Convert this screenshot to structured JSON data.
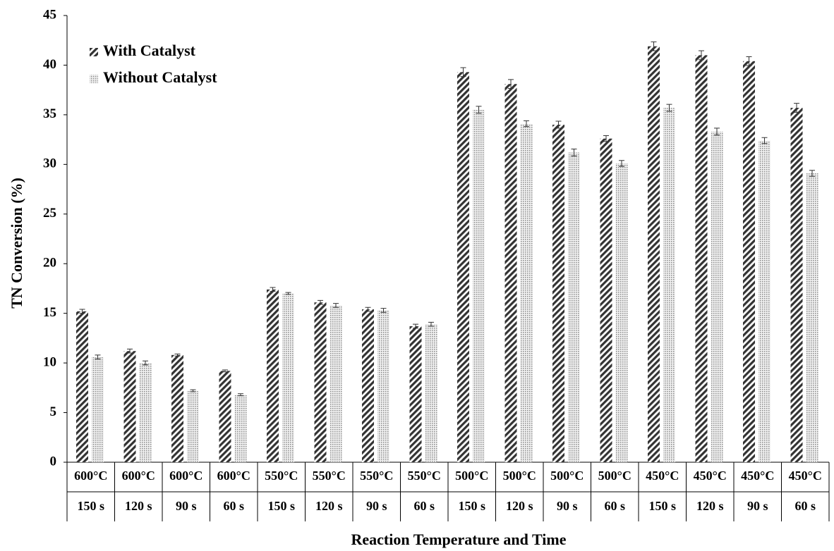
{
  "chart_data": {
    "type": "bar",
    "x_label": "Reaction Temperature and Time",
    "y_label": "TN Conversion (%)",
    "categories": [
      {
        "temperature": "600°C",
        "time": "150 s"
      },
      {
        "temperature": "600°C",
        "time": "120 s"
      },
      {
        "temperature": "600°C",
        "time": "90 s"
      },
      {
        "temperature": "600°C",
        "time": "60 s"
      },
      {
        "temperature": "550°C",
        "time": "150 s"
      },
      {
        "temperature": "550°C",
        "time": "120 s"
      },
      {
        "temperature": "550°C",
        "time": "90 s"
      },
      {
        "temperature": "550°C",
        "time": "60 s"
      },
      {
        "temperature": "500°C",
        "time": "150 s"
      },
      {
        "temperature": "500°C",
        "time": "120 s"
      },
      {
        "temperature": "500°C",
        "time": "90 s"
      },
      {
        "temperature": "500°C",
        "time": "60 s"
      },
      {
        "temperature": "450°C",
        "time": "150 s"
      },
      {
        "temperature": "450°C",
        "time": "120 s"
      },
      {
        "temperature": "450°C",
        "time": "90 s"
      },
      {
        "temperature": "450°C",
        "time": "60 s"
      }
    ],
    "series": [
      {
        "name": "With Catalyst",
        "color": "#333333",
        "pattern": "hatch",
        "values": [
          15.2,
          11.2,
          10.8,
          9.2,
          17.4,
          16.1,
          15.4,
          13.7,
          39.3,
          38.1,
          34.0,
          32.6,
          41.9,
          41.0,
          40.4,
          35.7
        ],
        "errors": [
          0.2,
          0.2,
          0.1,
          0.1,
          0.2,
          0.2,
          0.2,
          0.2,
          0.45,
          0.45,
          0.35,
          0.3,
          0.45,
          0.45,
          0.45,
          0.45
        ]
      },
      {
        "name": "Without Catalyst",
        "color": "#8a8a8a",
        "pattern": "dots",
        "values": [
          10.6,
          10.0,
          7.2,
          6.8,
          17.0,
          15.8,
          15.3,
          13.9,
          35.5,
          34.1,
          31.2,
          30.1,
          35.7,
          33.3,
          32.4,
          29.1
        ],
        "errors": [
          0.2,
          0.2,
          0.1,
          0.1,
          0.1,
          0.2,
          0.2,
          0.2,
          0.35,
          0.3,
          0.35,
          0.3,
          0.35,
          0.35,
          0.3,
          0.3
        ]
      }
    ],
    "ylim": [
      0,
      45
    ],
    "yticks": [
      0,
      5,
      10,
      15,
      20,
      25,
      30,
      35,
      40,
      45
    ],
    "legend": "top-left"
  }
}
